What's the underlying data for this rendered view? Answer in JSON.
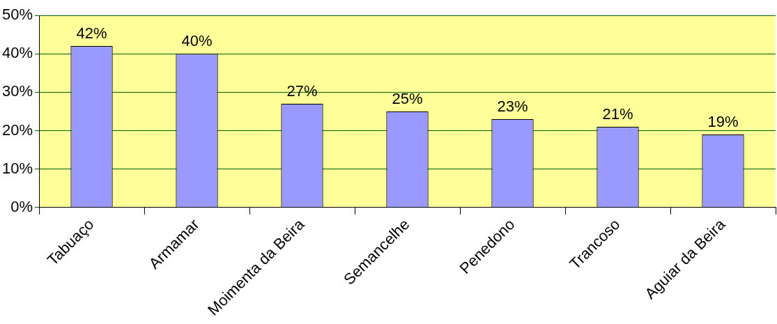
{
  "chart_data": {
    "type": "bar",
    "categories": [
      "Tabuaço",
      "Armamar",
      "Moimenta da Beira",
      "Semancelhe",
      "Penedono",
      "Trancoso",
      "Aguiar da Beira"
    ],
    "values": [
      42,
      40,
      27,
      25,
      23,
      21,
      19
    ],
    "color": "#9999ff",
    "ylim": [
      0,
      50
    ],
    "yticks": [
      {
        "value": 0,
        "label": "0%"
      },
      {
        "value": 10,
        "label": "10%"
      },
      {
        "value": 20,
        "label": "20%"
      },
      {
        "value": 30,
        "label": "30%"
      },
      {
        "value": 40,
        "label": "40%"
      },
      {
        "value": 50,
        "label": "50%"
      }
    ],
    "value_labels": [
      "42%",
      "40%",
      "27%",
      "25%",
      "23%",
      "21%",
      "19%"
    ],
    "grid": "y",
    "legend": false
  }
}
